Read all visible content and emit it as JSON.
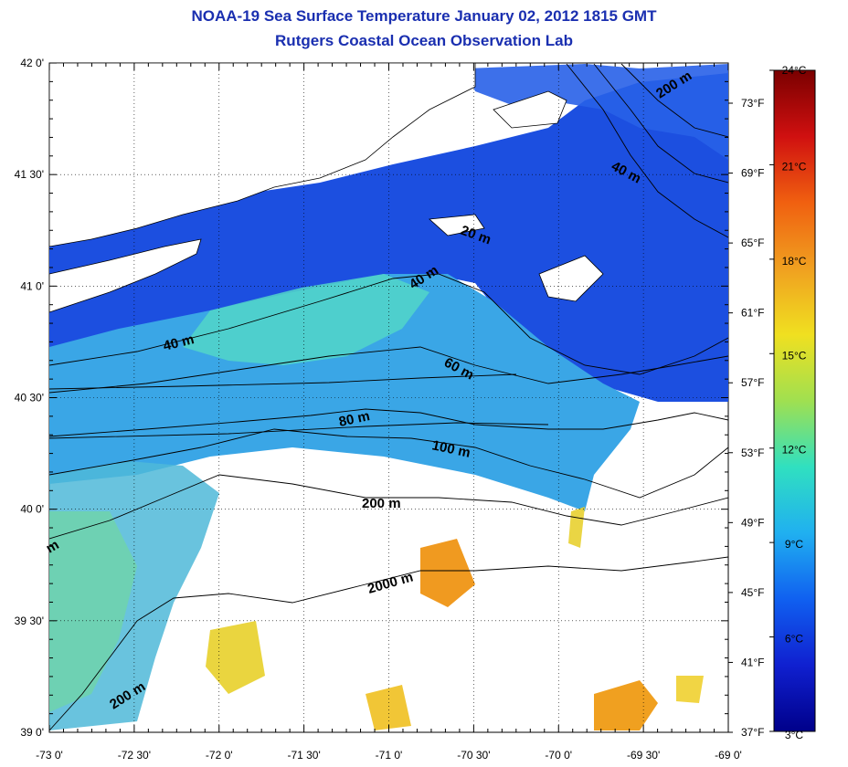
{
  "header": {
    "title": "NOAA-19 Sea Surface Temperature January 02, 2012 1815 GMT",
    "subtitle": "Rutgers Coastal Ocean Observation Lab"
  },
  "map": {
    "lon_ticks": [
      "-73 0'",
      "-72 30'",
      "-72 0'",
      "-71 30'",
      "-71 0'",
      "-70 30'",
      "-70 0'",
      "-69 30'",
      "-69 0'"
    ],
    "lat_ticks": [
      "42 0'",
      "41 30'",
      "41 0'",
      "40 30'",
      "40 0'",
      "39 30'",
      "39 0'"
    ],
    "fahrenheit_ticks": [
      "73°F",
      "69°F",
      "65°F",
      "61°F",
      "57°F",
      "53°F",
      "49°F",
      "45°F",
      "41°F",
      "37°F"
    ],
    "depth_labels": [
      "200 m",
      "40 m",
      "20 m",
      "40 m",
      "40 m",
      "60 m",
      "80 m",
      "100 m",
      "200 m",
      "2000 m",
      "200 m",
      "m"
    ],
    "colors": {
      "land_outline": "#000000",
      "cold": "#1030e0",
      "cool": "#3f9fe8",
      "mild": "#3fd0d0",
      "warm": "#f0d020",
      "hot": "#f08010",
      "grid": "#000000"
    }
  },
  "colorbar": {
    "labels": [
      "24°C",
      "21°C",
      "18°C",
      "15°C",
      "12°C",
      "9°C",
      "6°C",
      "3°C"
    ],
    "stops": [
      "#7a0000",
      "#d01010",
      "#f06010",
      "#f0a020",
      "#f0e020",
      "#a0e050",
      "#30e0c0",
      "#20b0f0",
      "#1060f0",
      "#1020d0",
      "#00008a"
    ]
  }
}
